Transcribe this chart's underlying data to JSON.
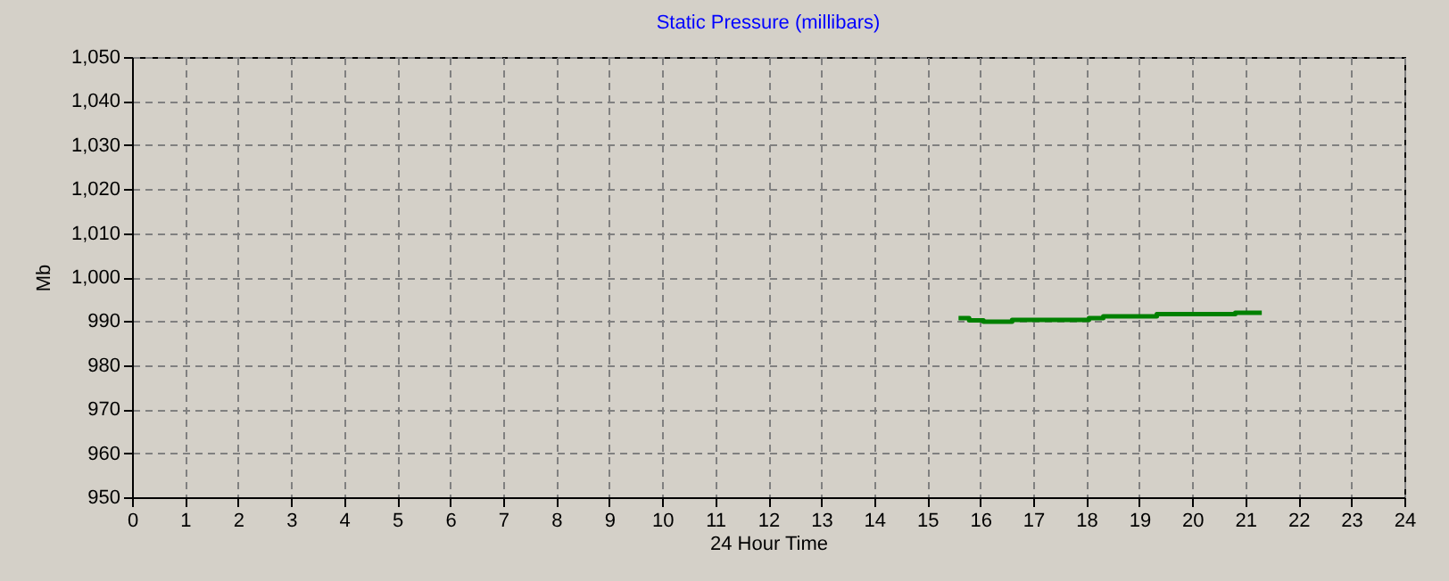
{
  "chart_data": {
    "type": "line",
    "title": "Static Pressure (millibars)",
    "xlabel": "24 Hour Time",
    "ylabel": "Mb",
    "x": [
      15.59,
      15.79,
      15.79,
      16.06,
      16.06,
      16.6,
      16.6,
      18.05,
      18.05,
      18.32,
      18.32,
      19.33,
      19.33,
      20.81,
      20.81,
      21.31
    ],
    "series": [
      {
        "color": "#008000",
        "values": [
          990.7,
          990.7,
          990.2,
          990.2,
          989.9,
          989.9,
          990.3,
          990.3,
          990.7,
          990.7,
          991.1,
          991.1,
          991.6,
          991.6,
          991.9,
          991.9
        ]
      }
    ],
    "xlim": [
      0,
      24
    ],
    "xticks": [
      0,
      1,
      2,
      3,
      4,
      5,
      6,
      7,
      8,
      9,
      10,
      11,
      12,
      13,
      14,
      15,
      16,
      17,
      18,
      19,
      20,
      21,
      22,
      23,
      24
    ],
    "ylim": [
      950,
      1050
    ],
    "yticks": [
      950,
      960,
      970,
      980,
      990,
      {
        "value": 1000,
        "label": "1,000"
      },
      {
        "value": 1010,
        "label": "1,010"
      },
      {
        "value": 1020,
        "label": "1,020"
      },
      {
        "value": 1030,
        "label": "1,030"
      },
      {
        "value": 1040,
        "label": "1,040"
      },
      {
        "value": 1050,
        "label": "1,050"
      }
    ],
    "grid": true,
    "marker": "none",
    "line_style": "solid"
  }
}
